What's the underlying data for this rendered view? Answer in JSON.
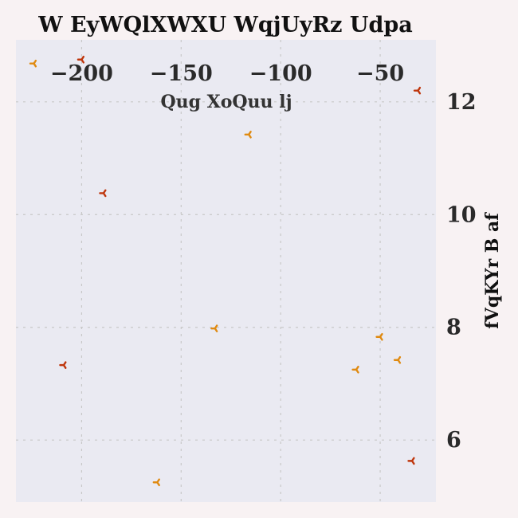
{
  "chart_data": {
    "type": "scatter",
    "title": "W EyWQlXWXU WqjUyRz Udpa",
    "xlabel": "Qug XoQuu lj",
    "ylabel": "fVqKYr B af",
    "xlim": [
      -233,
      -22
    ],
    "ylim": [
      4.9,
      13.1
    ],
    "xticks": [
      -200,
      -150,
      -100,
      -50
    ],
    "yticks": [
      6,
      8,
      10,
      12
    ],
    "xtick_labels": [
      "−200",
      "−150",
      "−100",
      "−50"
    ],
    "ytick_labels": [
      "6",
      "8",
      "10",
      "12"
    ],
    "x_axis_position": "top",
    "y_axis_position": "right",
    "grid": true,
    "marker": "tri",
    "series": [
      {
        "color": "#bf360c",
        "points": [
          {
            "x": -200,
            "y": 12.75
          },
          {
            "x": -189,
            "y": 10.38
          },
          {
            "x": -209,
            "y": 7.33
          },
          {
            "x": -31,
            "y": 12.2
          },
          {
            "x": -34,
            "y": 5.63
          }
        ]
      },
      {
        "color": "#e08a10",
        "points": [
          {
            "x": -224,
            "y": 12.68
          },
          {
            "x": -116,
            "y": 11.42
          },
          {
            "x": -133,
            "y": 7.98
          },
          {
            "x": -50,
            "y": 7.83
          },
          {
            "x": -41,
            "y": 7.42
          },
          {
            "x": -62,
            "y": 7.25
          },
          {
            "x": -162,
            "y": 5.25
          }
        ]
      }
    ]
  }
}
